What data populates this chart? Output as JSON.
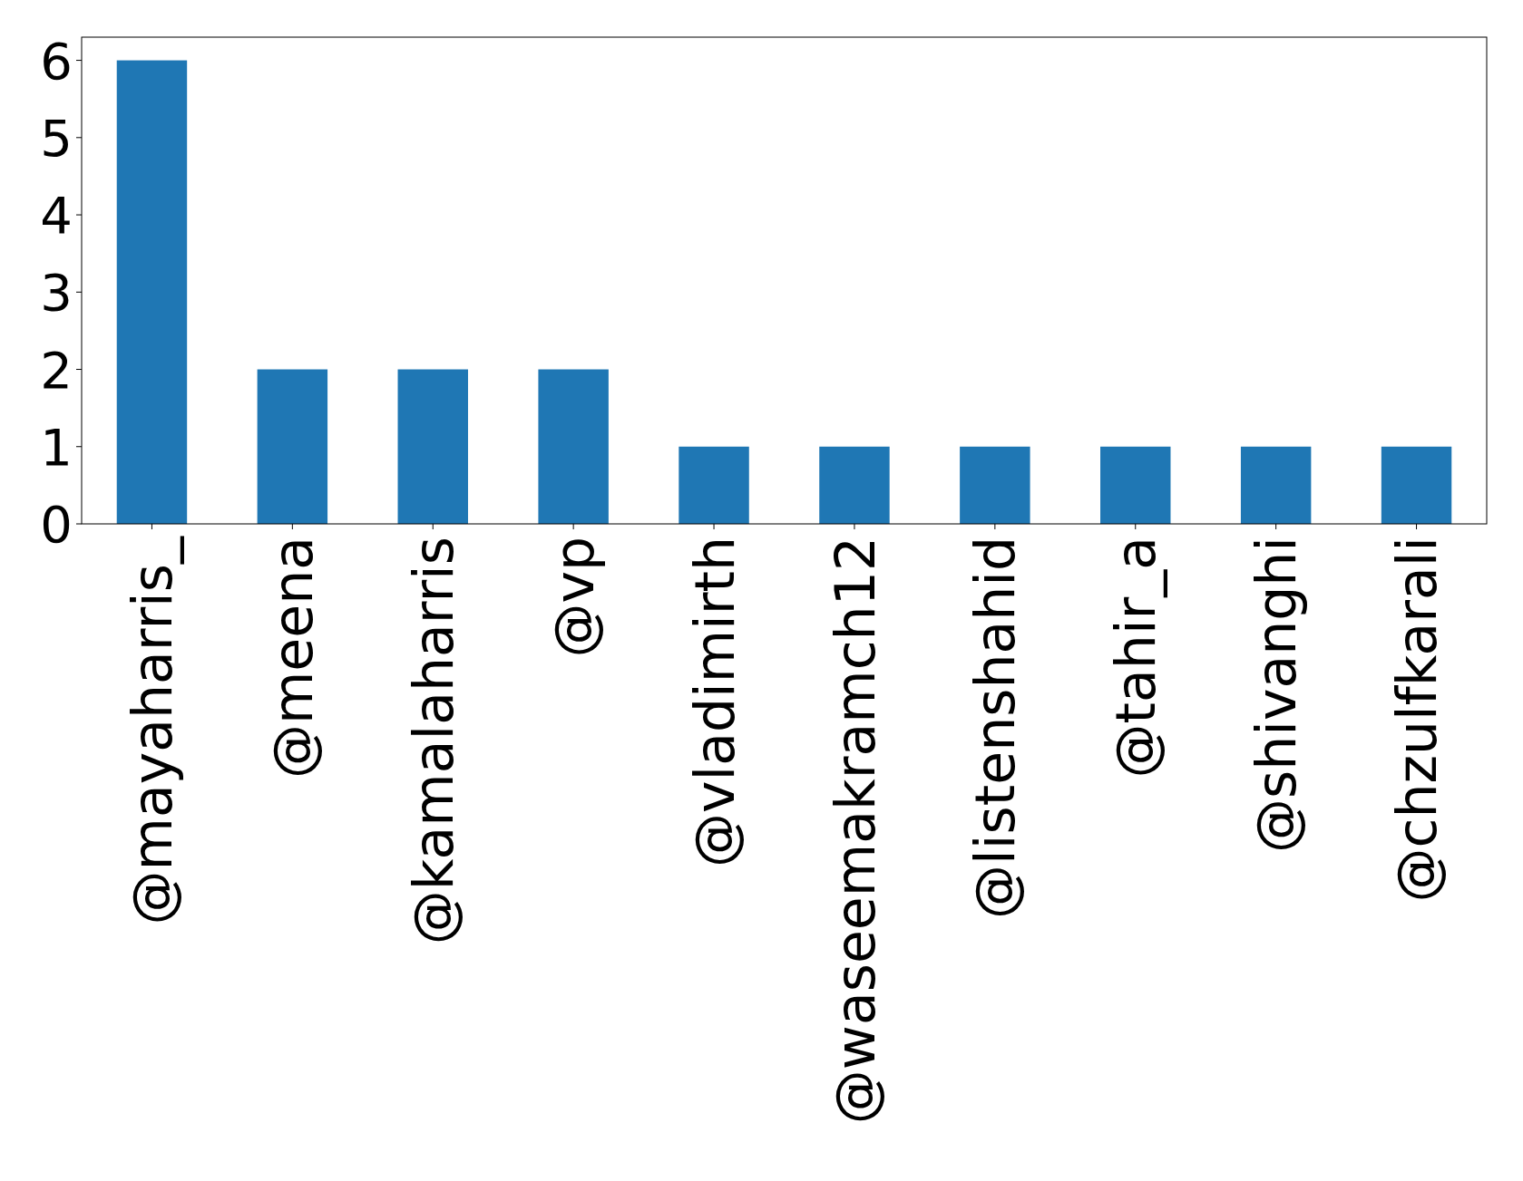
{
  "chart_data": {
    "type": "bar",
    "categories": [
      "@mayaharris_",
      "@meena",
      "@kamalaharris",
      "@vp",
      "@vladimirth",
      "@waseemakramch12",
      "@listenshahid",
      "@tahir_a",
      "@shivanghi",
      "@chzulfkarali"
    ],
    "values": [
      6,
      2,
      2,
      2,
      1,
      1,
      1,
      1,
      1,
      1
    ],
    "color": "#1f77b4",
    "ylim": [
      0,
      6.3
    ],
    "yticks": [
      0,
      1,
      2,
      3,
      4,
      5,
      6
    ],
    "grid": false
  }
}
